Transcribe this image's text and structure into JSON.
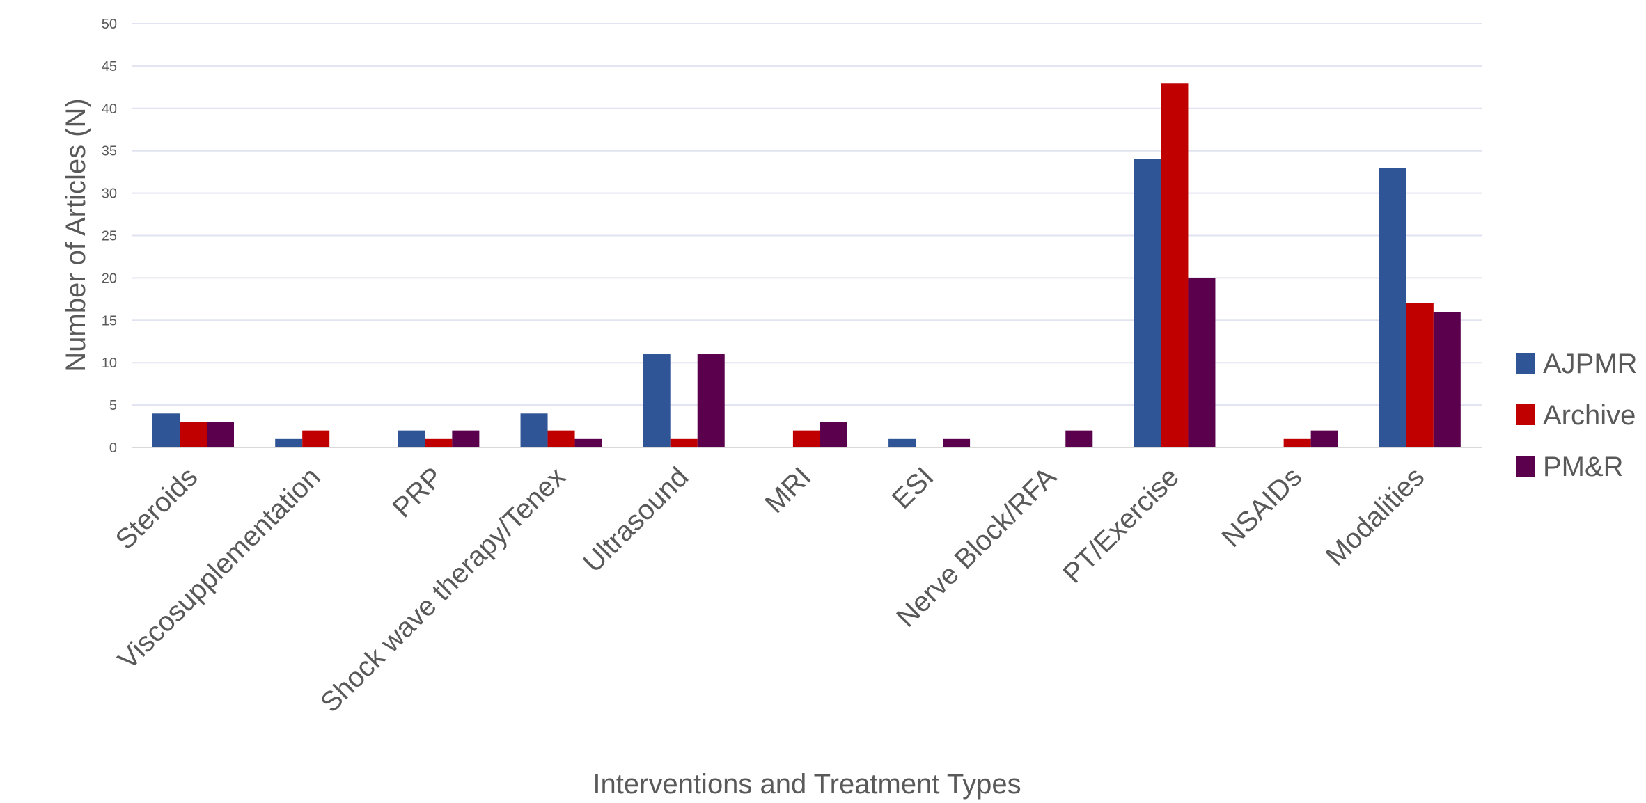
{
  "chart_data": {
    "type": "bar",
    "title": "",
    "xlabel": "Interventions and Treatment Types",
    "ylabel": "Number of Articles (N)",
    "ylim": [
      0,
      50
    ],
    "yticks": [
      0,
      5,
      10,
      15,
      20,
      25,
      30,
      35,
      40,
      45,
      50
    ],
    "grid": true,
    "legend_position": "right",
    "categories": [
      "Steroids",
      "Viscosupplementation",
      "PRP",
      "Shock wave therapy/Tenex",
      "Ultrasound",
      "MRI",
      "ESI",
      "Nerve Block/RFA",
      "PT/Exercise",
      "NSAIDs",
      "Modalities"
    ],
    "series": [
      {
        "name": "AJPMR",
        "color": "#2f5597",
        "values": [
          4,
          1,
          2,
          4,
          11,
          0,
          1,
          0,
          34,
          0,
          33
        ]
      },
      {
        "name": "Archive",
        "color": "#c00000",
        "values": [
          3,
          2,
          1,
          2,
          1,
          2,
          0,
          0,
          43,
          1,
          17
        ]
      },
      {
        "name": "PM&R",
        "color": "#5b004d",
        "values": [
          3,
          0,
          2,
          1,
          11,
          3,
          1,
          2,
          20,
          2,
          16
        ]
      }
    ]
  }
}
